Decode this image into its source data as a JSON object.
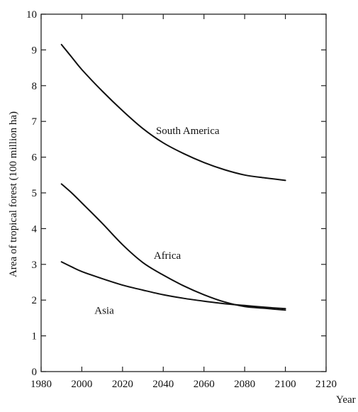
{
  "chart_data": {
    "type": "line",
    "title": "",
    "xlabel": "Year",
    "ylabel": "Area of tropical forest (100 million ha)",
    "xlim": [
      1980,
      2120
    ],
    "ylim": [
      0,
      10
    ],
    "xticks": [
      1980,
      2000,
      2020,
      2040,
      2060,
      2080,
      2100,
      2120
    ],
    "yticks": [
      0,
      1,
      2,
      3,
      4,
      5,
      6,
      7,
      8,
      9,
      10
    ],
    "grid": false,
    "legend": "none",
    "series": [
      {
        "name": "South America",
        "label_at": [
          2052,
          6.75
        ],
        "x": [
          1990,
          1995,
          2000,
          2010,
          2020,
          2030,
          2040,
          2050,
          2060,
          2070,
          2080,
          2090,
          2100
        ],
        "y": [
          9.15,
          8.8,
          8.45,
          7.85,
          7.3,
          6.8,
          6.4,
          6.1,
          5.85,
          5.65,
          5.5,
          5.42,
          5.35
        ]
      },
      {
        "name": "Africa",
        "label_at": [
          2042,
          3.25
        ],
        "x": [
          1990,
          1995,
          2000,
          2010,
          2020,
          2030,
          2040,
          2050,
          2060,
          2070,
          2080,
          2090,
          2100
        ],
        "y": [
          5.25,
          5.0,
          4.72,
          4.15,
          3.55,
          3.05,
          2.7,
          2.4,
          2.15,
          1.95,
          1.82,
          1.77,
          1.72
        ]
      },
      {
        "name": "Asia",
        "label_at": [
          2011,
          1.72
        ],
        "x": [
          1990,
          1995,
          2000,
          2010,
          2020,
          2030,
          2040,
          2050,
          2060,
          2070,
          2080,
          2090,
          2100
        ],
        "y": [
          3.07,
          2.93,
          2.8,
          2.6,
          2.42,
          2.28,
          2.15,
          2.05,
          1.97,
          1.9,
          1.85,
          1.8,
          1.76
        ]
      }
    ],
    "colors": {
      "line": "#111111",
      "text": "#111111",
      "background": "#ffffff"
    }
  }
}
